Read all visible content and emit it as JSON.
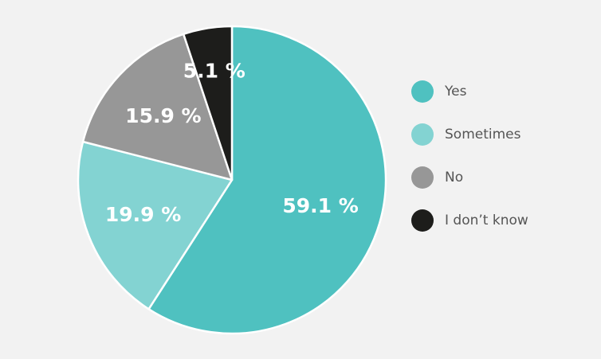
{
  "chart_data": {
    "type": "pie",
    "title": "",
    "categories": [
      "Yes",
      "Sometimes",
      "No",
      "I don’t know"
    ],
    "values": [
      59.1,
      19.9,
      15.9,
      5.1
    ],
    "value_labels": [
      "59.1 %",
      "19.9 %",
      "15.9 %",
      "5.1 %"
    ],
    "colors": [
      "#4fc1c0",
      "#83d3d2",
      "#979797",
      "#1d1d1b"
    ],
    "slice_border_color": "#ffffff",
    "start_angle": "12 o'clock",
    "direction": "clockwise",
    "legend_position": "right"
  }
}
